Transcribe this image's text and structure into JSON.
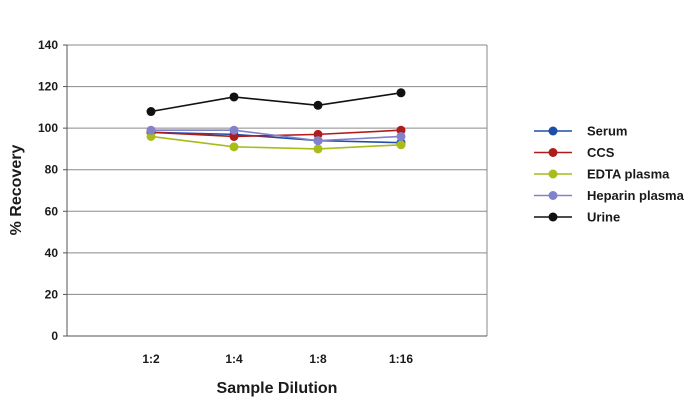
{
  "chart_data": {
    "type": "line",
    "xlabel": "Sample Dilution",
    "ylabel": "% Recovery",
    "categories": [
      "1:2",
      "1:4",
      "1:8",
      "1:16"
    ],
    "ylim": [
      0,
      140
    ],
    "yticks": [
      0,
      20,
      40,
      60,
      80,
      100,
      120,
      140
    ],
    "grid": "horizontal",
    "legend_position": "right",
    "series": [
      {
        "name": "Serum",
        "color": "#1f4ea8",
        "values": [
          98,
          97,
          94,
          93
        ]
      },
      {
        "name": "CCS",
        "color": "#b01c1c",
        "values": [
          98,
          96,
          97,
          99
        ]
      },
      {
        "name": "EDTA plasma",
        "color": "#a9bc1a",
        "values": [
          96,
          91,
          90,
          92
        ]
      },
      {
        "name": "Heparin plasma",
        "color": "#8282cc",
        "values": [
          99,
          99,
          94,
          96
        ]
      },
      {
        "name": "Urine",
        "color": "#111111",
        "values": [
          108,
          115,
          111,
          117
        ]
      }
    ]
  }
}
